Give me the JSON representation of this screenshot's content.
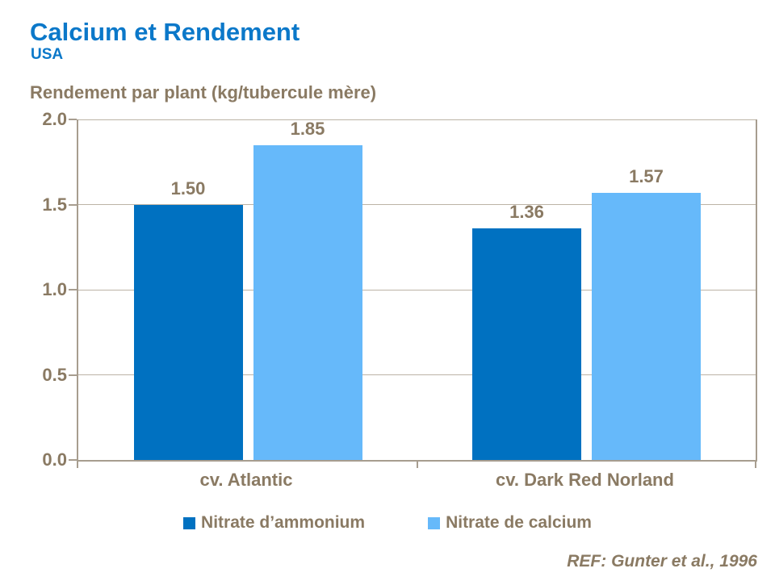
{
  "page": {
    "title": "Calcium et Rendement",
    "subtitle": "USA",
    "reference": "REF: Gunter et al., 1996"
  },
  "chart_data": {
    "type": "bar",
    "title": "Rendement par plant (kg/tubercule mère)",
    "categories": [
      "cv. Atlantic",
      "cv. Dark Red Norland"
    ],
    "series": [
      {
        "name": "Nitrate d’ammonium",
        "color": "#0071c1",
        "values": [
          1.5,
          1.36
        ],
        "labels": [
          "1.50",
          "1.36"
        ]
      },
      {
        "name": "Nitrate de calcium",
        "color": "#66b9fa",
        "values": [
          1.85,
          1.57
        ],
        "labels": [
          "1.85",
          "1.57"
        ]
      }
    ],
    "ylim": [
      0.0,
      2.0
    ],
    "yticks": [
      "2.0",
      "1.5",
      "1.0",
      "0.5",
      "0.0"
    ],
    "grid": true,
    "legend_position": "bottom",
    "colors": {
      "title_blue": "#0b78c9",
      "text_brown": "#8a7a63",
      "axis_line": "#a79d8f",
      "gridline": "#bcb3a6"
    }
  }
}
